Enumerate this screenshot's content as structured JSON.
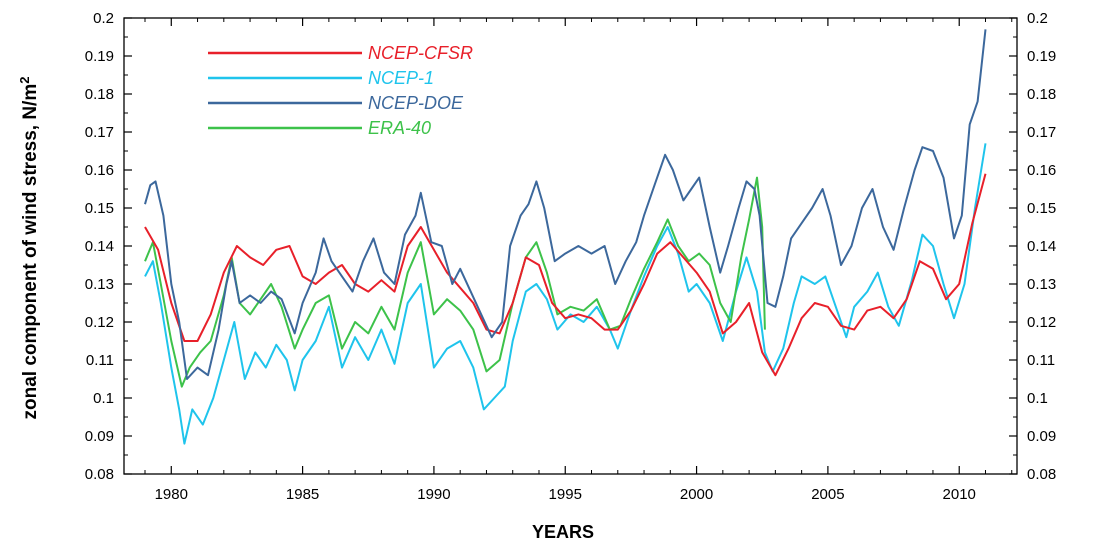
{
  "chart_data": {
    "type": "line",
    "xlabel": "YEARS",
    "ylabel": "zonal component of wind stress, N/m",
    "ylabel_superscript": "2",
    "xlim": [
      1978.2,
      2012.2
    ],
    "ylim": [
      0.08,
      0.2
    ],
    "x_ticks": [
      1980,
      1985,
      1990,
      1995,
      2000,
      2005,
      2010
    ],
    "y_ticks": [
      0.08,
      0.09,
      0.1,
      0.11,
      0.12,
      0.13,
      0.14,
      0.15,
      0.16,
      0.17,
      0.18,
      0.19,
      0.2
    ],
    "x_tick_labels": [
      "1980",
      "1985",
      "1990",
      "1995",
      "2000",
      "2005",
      "2010"
    ],
    "y_tick_labels": [
      "0.08",
      "0.09",
      "0.1",
      "0.11",
      "0.12",
      "0.13",
      "0.14",
      "0.15",
      "0.16",
      "0.17",
      "0.18",
      "0.19",
      "0.2"
    ],
    "grid": false,
    "legend_position": "top-left",
    "series": [
      {
        "name": "NCEP-CFSR",
        "color": "#e8202a",
        "points": [
          [
            1979.0,
            0.145
          ],
          [
            1979.5,
            0.139
          ],
          [
            1980.0,
            0.125
          ],
          [
            1980.5,
            0.115
          ],
          [
            1981.0,
            0.115
          ],
          [
            1981.5,
            0.122
          ],
          [
            1982.0,
            0.133
          ],
          [
            1982.5,
            0.14
          ],
          [
            1983.0,
            0.137
          ],
          [
            1983.5,
            0.135
          ],
          [
            1984.0,
            0.139
          ],
          [
            1984.5,
            0.14
          ],
          [
            1985.0,
            0.132
          ],
          [
            1985.5,
            0.13
          ],
          [
            1986.0,
            0.133
          ],
          [
            1986.5,
            0.135
          ],
          [
            1987.0,
            0.13
          ],
          [
            1987.5,
            0.128
          ],
          [
            1988.0,
            0.131
          ],
          [
            1988.5,
            0.128
          ],
          [
            1989.0,
            0.14
          ],
          [
            1989.5,
            0.145
          ],
          [
            1990.0,
            0.139
          ],
          [
            1990.5,
            0.133
          ],
          [
            1991.0,
            0.129
          ],
          [
            1991.5,
            0.125
          ],
          [
            1992.0,
            0.118
          ],
          [
            1992.5,
            0.117
          ],
          [
            1993.0,
            0.125
          ],
          [
            1993.5,
            0.137
          ],
          [
            1994.0,
            0.135
          ],
          [
            1994.5,
            0.125
          ],
          [
            1995.0,
            0.121
          ],
          [
            1995.5,
            0.122
          ],
          [
            1996.0,
            0.121
          ],
          [
            1996.5,
            0.118
          ],
          [
            1997.0,
            0.118
          ],
          [
            1997.5,
            0.123
          ],
          [
            1998.0,
            0.13
          ],
          [
            1998.5,
            0.138
          ],
          [
            1999.0,
            0.141
          ],
          [
            1999.5,
            0.137
          ],
          [
            2000.0,
            0.133
          ],
          [
            2000.5,
            0.128
          ],
          [
            2001.0,
            0.117
          ],
          [
            2001.5,
            0.12
          ],
          [
            2002.0,
            0.125
          ],
          [
            2002.5,
            0.112
          ],
          [
            2003.0,
            0.106
          ],
          [
            2003.5,
            0.113
          ],
          [
            2004.0,
            0.121
          ],
          [
            2004.5,
            0.125
          ],
          [
            2005.0,
            0.124
          ],
          [
            2005.5,
            0.119
          ],
          [
            2006.0,
            0.118
          ],
          [
            2006.5,
            0.123
          ],
          [
            2007.0,
            0.124
          ],
          [
            2007.5,
            0.121
          ],
          [
            2008.0,
            0.126
          ],
          [
            2008.5,
            0.136
          ],
          [
            2009.0,
            0.134
          ],
          [
            2009.5,
            0.126
          ],
          [
            2010.0,
            0.13
          ],
          [
            2010.5,
            0.146
          ],
          [
            2011.0,
            0.159
          ]
        ]
      },
      {
        "name": "NCEP-1",
        "color": "#1fc4ec",
        "points": [
          [
            1979.0,
            0.132
          ],
          [
            1979.3,
            0.136
          ],
          [
            1979.6,
            0.125
          ],
          [
            1980.0,
            0.108
          ],
          [
            1980.3,
            0.097
          ],
          [
            1980.5,
            0.088
          ],
          [
            1980.8,
            0.097
          ],
          [
            1981.2,
            0.093
          ],
          [
            1981.6,
            0.1
          ],
          [
            1982.0,
            0.11
          ],
          [
            1982.4,
            0.12
          ],
          [
            1982.8,
            0.105
          ],
          [
            1983.2,
            0.112
          ],
          [
            1983.6,
            0.108
          ],
          [
            1984.0,
            0.114
          ],
          [
            1984.4,
            0.11
          ],
          [
            1984.7,
            0.102
          ],
          [
            1985.0,
            0.11
          ],
          [
            1985.5,
            0.115
          ],
          [
            1986.0,
            0.124
          ],
          [
            1986.5,
            0.108
          ],
          [
            1987.0,
            0.116
          ],
          [
            1987.5,
            0.11
          ],
          [
            1988.0,
            0.118
          ],
          [
            1988.5,
            0.109
          ],
          [
            1989.0,
            0.125
          ],
          [
            1989.5,
            0.13
          ],
          [
            1990.0,
            0.108
          ],
          [
            1990.5,
            0.113
          ],
          [
            1991.0,
            0.115
          ],
          [
            1991.5,
            0.108
          ],
          [
            1991.9,
            0.097
          ],
          [
            1992.3,
            0.1
          ],
          [
            1992.7,
            0.103
          ],
          [
            1993.0,
            0.115
          ],
          [
            1993.5,
            0.128
          ],
          [
            1993.9,
            0.13
          ],
          [
            1994.3,
            0.126
          ],
          [
            1994.7,
            0.118
          ],
          [
            1995.2,
            0.122
          ],
          [
            1995.7,
            0.12
          ],
          [
            1996.2,
            0.124
          ],
          [
            1996.7,
            0.118
          ],
          [
            1997.0,
            0.113
          ],
          [
            1997.5,
            0.123
          ],
          [
            1998.0,
            0.132
          ],
          [
            1998.5,
            0.14
          ],
          [
            1998.9,
            0.145
          ],
          [
            1999.3,
            0.138
          ],
          [
            1999.7,
            0.128
          ],
          [
            2000.0,
            0.13
          ],
          [
            2000.5,
            0.125
          ],
          [
            2001.0,
            0.115
          ],
          [
            2001.5,
            0.128
          ],
          [
            2001.9,
            0.137
          ],
          [
            2002.3,
            0.128
          ],
          [
            2002.6,
            0.112
          ],
          [
            2002.9,
            0.107
          ],
          [
            2003.3,
            0.113
          ],
          [
            2003.7,
            0.125
          ],
          [
            2004.0,
            0.132
          ],
          [
            2004.5,
            0.13
          ],
          [
            2004.9,
            0.132
          ],
          [
            2005.3,
            0.124
          ],
          [
            2005.7,
            0.116
          ],
          [
            2006.0,
            0.124
          ],
          [
            2006.5,
            0.128
          ],
          [
            2006.9,
            0.133
          ],
          [
            2007.3,
            0.124
          ],
          [
            2007.7,
            0.119
          ],
          [
            2008.2,
            0.131
          ],
          [
            2008.6,
            0.143
          ],
          [
            2009.0,
            0.14
          ],
          [
            2009.4,
            0.13
          ],
          [
            2009.8,
            0.121
          ],
          [
            2010.2,
            0.13
          ],
          [
            2010.6,
            0.15
          ],
          [
            2011.0,
            0.167
          ]
        ]
      },
      {
        "name": "NCEP-DOE",
        "color": "#3c689c",
        "points": [
          [
            1979.0,
            0.151
          ],
          [
            1979.2,
            0.156
          ],
          [
            1979.4,
            0.157
          ],
          [
            1979.7,
            0.148
          ],
          [
            1980.0,
            0.13
          ],
          [
            1980.3,
            0.12
          ],
          [
            1980.6,
            0.105
          ],
          [
            1981.0,
            0.108
          ],
          [
            1981.4,
            0.106
          ],
          [
            1981.8,
            0.118
          ],
          [
            1982.1,
            0.13
          ],
          [
            1982.3,
            0.136
          ],
          [
            1982.6,
            0.125
          ],
          [
            1983.0,
            0.127
          ],
          [
            1983.4,
            0.125
          ],
          [
            1983.8,
            0.128
          ],
          [
            1984.2,
            0.126
          ],
          [
            1984.7,
            0.117
          ],
          [
            1985.0,
            0.125
          ],
          [
            1985.5,
            0.133
          ],
          [
            1985.8,
            0.142
          ],
          [
            1986.1,
            0.136
          ],
          [
            1986.5,
            0.132
          ],
          [
            1986.9,
            0.128
          ],
          [
            1987.3,
            0.136
          ],
          [
            1987.7,
            0.142
          ],
          [
            1988.1,
            0.133
          ],
          [
            1988.5,
            0.13
          ],
          [
            1988.9,
            0.143
          ],
          [
            1989.3,
            0.148
          ],
          [
            1989.5,
            0.154
          ],
          [
            1989.9,
            0.141
          ],
          [
            1990.3,
            0.14
          ],
          [
            1990.7,
            0.13
          ],
          [
            1991.0,
            0.134
          ],
          [
            1991.4,
            0.128
          ],
          [
            1991.8,
            0.122
          ],
          [
            1992.2,
            0.116
          ],
          [
            1992.6,
            0.12
          ],
          [
            1992.9,
            0.14
          ],
          [
            1993.3,
            0.148
          ],
          [
            1993.6,
            0.151
          ],
          [
            1993.9,
            0.157
          ],
          [
            1994.2,
            0.15
          ],
          [
            1994.6,
            0.136
          ],
          [
            1995.0,
            0.138
          ],
          [
            1995.5,
            0.14
          ],
          [
            1996.0,
            0.138
          ],
          [
            1996.5,
            0.14
          ],
          [
            1996.9,
            0.13
          ],
          [
            1997.3,
            0.136
          ],
          [
            1997.7,
            0.141
          ],
          [
            1998.0,
            0.148
          ],
          [
            1998.4,
            0.156
          ],
          [
            1998.8,
            0.164
          ],
          [
            1999.1,
            0.16
          ],
          [
            1999.5,
            0.152
          ],
          [
            1999.8,
            0.155
          ],
          [
            2000.1,
            0.158
          ],
          [
            2000.5,
            0.145
          ],
          [
            2000.9,
            0.133
          ],
          [
            2001.2,
            0.14
          ],
          [
            2001.6,
            0.15
          ],
          [
            2001.9,
            0.157
          ],
          [
            2002.2,
            0.155
          ],
          [
            2002.4,
            0.148
          ],
          [
            2002.7,
            0.125
          ],
          [
            2003.0,
            0.124
          ],
          [
            2003.3,
            0.132
          ],
          [
            2003.6,
            0.142
          ],
          [
            2004.0,
            0.146
          ],
          [
            2004.4,
            0.15
          ],
          [
            2004.8,
            0.155
          ],
          [
            2005.1,
            0.148
          ],
          [
            2005.5,
            0.135
          ],
          [
            2005.9,
            0.14
          ],
          [
            2006.3,
            0.15
          ],
          [
            2006.7,
            0.155
          ],
          [
            2007.1,
            0.145
          ],
          [
            2007.5,
            0.139
          ],
          [
            2007.9,
            0.15
          ],
          [
            2008.3,
            0.16
          ],
          [
            2008.6,
            0.166
          ],
          [
            2009.0,
            0.165
          ],
          [
            2009.4,
            0.158
          ],
          [
            2009.8,
            0.142
          ],
          [
            2010.1,
            0.148
          ],
          [
            2010.4,
            0.172
          ],
          [
            2010.7,
            0.178
          ],
          [
            2011.0,
            0.197
          ]
        ]
      },
      {
        "name": "ERA-40",
        "color": "#3dc24a",
        "points": [
          [
            1979.0,
            0.136
          ],
          [
            1979.3,
            0.141
          ],
          [
            1979.6,
            0.13
          ],
          [
            1980.0,
            0.115
          ],
          [
            1980.4,
            0.103
          ],
          [
            1980.7,
            0.108
          ],
          [
            1981.1,
            0.112
          ],
          [
            1981.5,
            0.115
          ],
          [
            1982.0,
            0.127
          ],
          [
            1982.3,
            0.137
          ],
          [
            1982.6,
            0.125
          ],
          [
            1983.0,
            0.122
          ],
          [
            1983.4,
            0.126
          ],
          [
            1983.8,
            0.13
          ],
          [
            1984.2,
            0.124
          ],
          [
            1984.7,
            0.113
          ],
          [
            1985.0,
            0.118
          ],
          [
            1985.5,
            0.125
          ],
          [
            1986.0,
            0.127
          ],
          [
            1986.5,
            0.113
          ],
          [
            1987.0,
            0.12
          ],
          [
            1987.5,
            0.117
          ],
          [
            1988.0,
            0.124
          ],
          [
            1988.5,
            0.118
          ],
          [
            1989.0,
            0.133
          ],
          [
            1989.5,
            0.141
          ],
          [
            1990.0,
            0.122
          ],
          [
            1990.5,
            0.126
          ],
          [
            1991.0,
            0.123
          ],
          [
            1991.5,
            0.118
          ],
          [
            1992.0,
            0.107
          ],
          [
            1992.5,
            0.11
          ],
          [
            1993.0,
            0.125
          ],
          [
            1993.5,
            0.137
          ],
          [
            1993.9,
            0.141
          ],
          [
            1994.3,
            0.133
          ],
          [
            1994.7,
            0.122
          ],
          [
            1995.2,
            0.124
          ],
          [
            1995.7,
            0.123
          ],
          [
            1996.2,
            0.126
          ],
          [
            1996.7,
            0.118
          ],
          [
            1997.1,
            0.119
          ],
          [
            1997.5,
            0.126
          ],
          [
            1998.0,
            0.134
          ],
          [
            1998.5,
            0.141
          ],
          [
            1998.9,
            0.147
          ],
          [
            1999.3,
            0.14
          ],
          [
            1999.7,
            0.136
          ],
          [
            2000.1,
            0.138
          ],
          [
            2000.5,
            0.135
          ],
          [
            2000.9,
            0.125
          ],
          [
            2001.3,
            0.12
          ],
          [
            2001.7,
            0.137
          ],
          [
            2002.0,
            0.147
          ],
          [
            2002.3,
            0.158
          ],
          [
            2002.5,
            0.145
          ],
          [
            2002.6,
            0.118
          ]
        ]
      }
    ]
  }
}
